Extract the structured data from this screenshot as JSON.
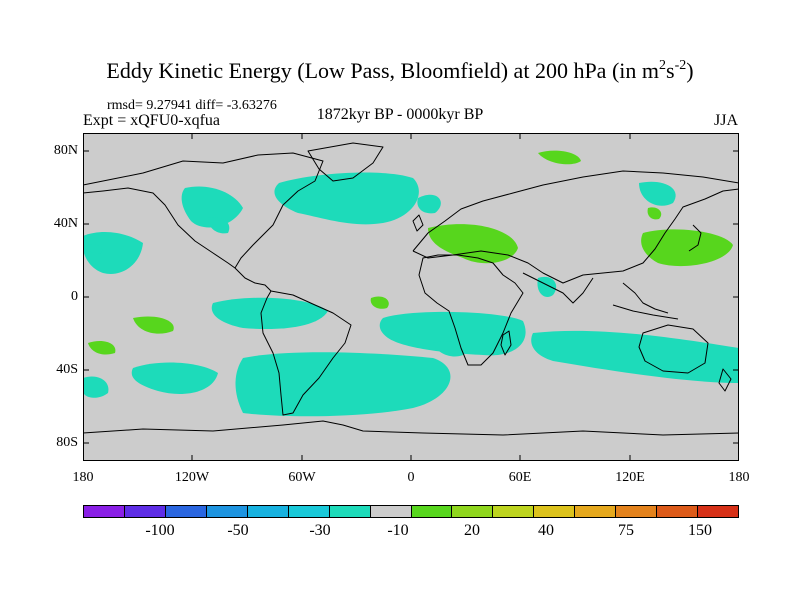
{
  "title": {
    "main": "Eddy Kinetic Energy (Low Pass, Bloomfield) at 200 hPa (in m",
    "sup1": "2",
    "s": "s",
    "sup2": "-2",
    "close": ")"
  },
  "stats": "rmsd= 9.27941 diff= -3.63276",
  "experiment": "Expt = xQFU0-xqfua",
  "period": "1872kyr BP - 0000kyr BP",
  "season": "JJA",
  "axes": {
    "lat_labels": [
      "80N",
      "40N",
      "0",
      "40S",
      "80S"
    ],
    "lat_values": [
      80,
      40,
      0,
      -40,
      -80
    ],
    "lon_labels": [
      "180",
      "120W",
      "60W",
      "0",
      "60E",
      "120E",
      "180"
    ],
    "lon_values": [
      -180,
      -120,
      -60,
      0,
      60,
      120,
      180
    ]
  },
  "colorbar": {
    "colors": [
      "#8a1fe6",
      "#5e2de6",
      "#2a66e0",
      "#1d94e0",
      "#17b2e0",
      "#19c9d9",
      "#1ddbba",
      "#cccccc",
      "#57d61d",
      "#8fd61d",
      "#bdd41f",
      "#dcc21c",
      "#e5a81d",
      "#e3821c",
      "#dc5a19",
      "#d63017"
    ],
    "labels": [
      "-100",
      "-50",
      "-30",
      "-10",
      "20",
      "40",
      "75",
      "150"
    ]
  },
  "map": {
    "ocean_fill": "#cccccc",
    "land_outline": "#000000",
    "bounds": {
      "lon": [
        -180,
        180
      ],
      "lat": [
        -90,
        90
      ]
    }
  }
}
